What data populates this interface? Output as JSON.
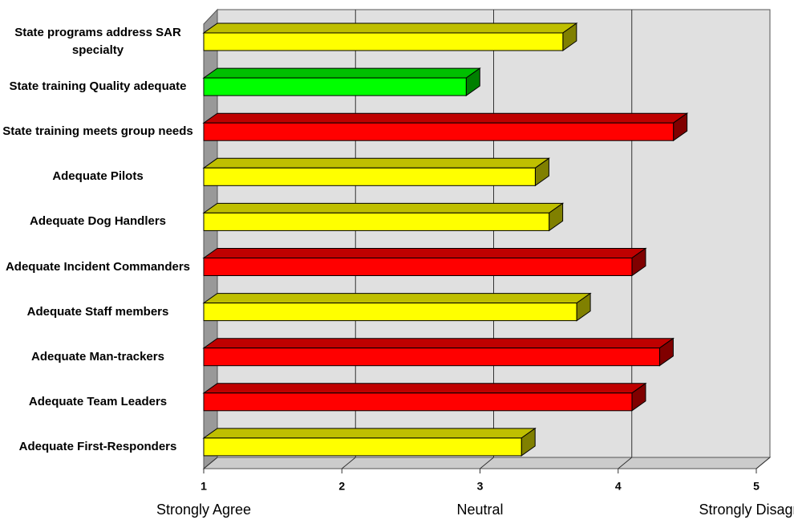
{
  "chart_data": {
    "type": "bar3d_horizontal",
    "categories": [
      "State programs address SAR specialty",
      "State training Quality adequate",
      "State training meets group needs",
      "Adequate Pilots",
      "Adequate Dog Handlers",
      "Adequate Incident Commanders",
      "Adequate Staff members",
      "Adequate Man-trackers",
      "Adequate  Team Leaders",
      "Adequate First-Responders"
    ],
    "values": [
      3.6,
      2.9,
      4.4,
      3.4,
      3.5,
      4.1,
      3.7,
      4.3,
      4.1,
      3.3
    ],
    "colors": [
      "#ffff00",
      "#00ff00",
      "#ff0000",
      "#ffff00",
      "#ffff00",
      "#ff0000",
      "#ffff00",
      "#ff0000",
      "#ff0000",
      "#ffff00"
    ],
    "xlim": [
      1,
      5
    ],
    "xticks": [
      1,
      2,
      3,
      4,
      5
    ],
    "grid": true,
    "annotations": [
      {
        "text": "Strongly Agree",
        "x": 1
      },
      {
        "text": "Neutral",
        "x": 3
      },
      {
        "text": "Strongly Disagree",
        "x": 5
      }
    ]
  }
}
